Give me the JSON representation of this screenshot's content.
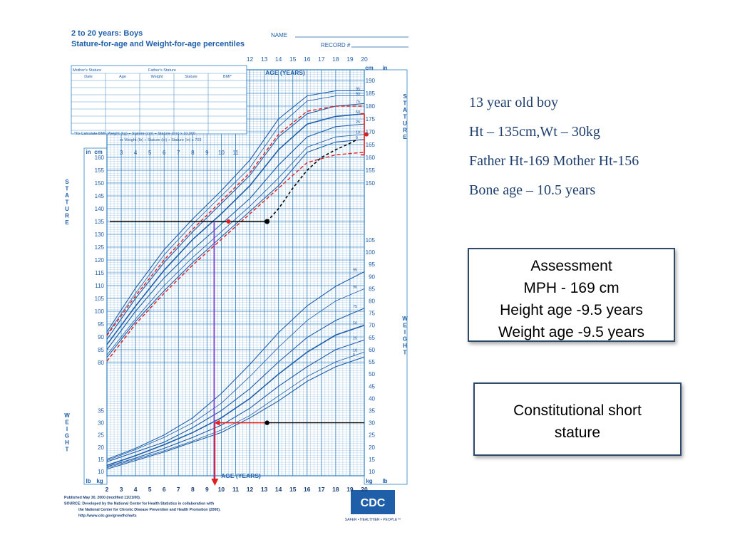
{
  "chart_data": {
    "type": "line",
    "title": "2 to 20 years: Boys",
    "subtitle": "Stature-for-age and Weight-for-age percentiles",
    "header_fields": {
      "name": "NAME",
      "record": "RECORD #"
    },
    "record_table": {
      "parent_fields": [
        "Mother's Stature",
        "Father's Stature"
      ],
      "columns": [
        "Date",
        "Age",
        "Weight",
        "Stature",
        "BMI*"
      ]
    },
    "bmi_formula": [
      "*To Calculate BMI: Weight (kg) ÷ Stature (cm) ÷ Stature (cm) x 10,000",
      "or Weight (lb) ÷ Stature (in) ÷ Stature (in) x 703"
    ],
    "x_axis": {
      "label": "AGE (YEARS)",
      "range": [
        2,
        20
      ],
      "ticks": [
        "2",
        "3",
        "4",
        "5",
        "6",
        "7",
        "8",
        "9",
        "10",
        "11",
        "12",
        "13",
        "14",
        "15",
        "16",
        "17",
        "18",
        "19",
        "20"
      ]
    },
    "y_axis_stature_cm": {
      "range": [
        80,
        195
      ],
      "ticks": [
        "80",
        "85",
        "90",
        "95",
        "100",
        "105",
        "110",
        "115",
        "120",
        "125",
        "130",
        "135",
        "140",
        "145",
        "150",
        "155",
        "160",
        "165",
        "170",
        "175",
        "180",
        "185",
        "190"
      ]
    },
    "y_axis_weight_kg": {
      "range": [
        10,
        105
      ],
      "ticks": [
        "10",
        "15",
        "20",
        "25",
        "30",
        "35",
        "40",
        "45",
        "50",
        "55",
        "60",
        "65",
        "70",
        "75",
        "80",
        "85",
        "90",
        "95",
        "100",
        "105"
      ]
    },
    "axis_units": {
      "cm": "cm",
      "in": "in",
      "kg": "kg",
      "lb": "lb"
    },
    "side_labels": {
      "stature": "STATURE",
      "weight": "WEIGHT"
    },
    "stature_series": [
      {
        "name": "95",
        "x": [
          2,
          4,
          6,
          8,
          10,
          12,
          14,
          16,
          18,
          20
        ],
        "values": [
          92,
          109,
          124,
          136,
          147,
          159,
          175,
          184,
          186,
          186
        ]
      },
      {
        "name": "90",
        "x": [
          2,
          4,
          6,
          8,
          10,
          12,
          14,
          16,
          18,
          20
        ],
        "values": [
          91,
          107,
          122,
          134,
          145,
          156,
          172,
          182,
          184,
          184
        ]
      },
      {
        "name": "75",
        "x": [
          2,
          4,
          6,
          8,
          10,
          12,
          14,
          16,
          18,
          20
        ],
        "values": [
          89,
          105,
          119,
          131,
          142,
          153,
          168,
          177,
          180,
          181
        ]
      },
      {
        "name": "50",
        "x": [
          2,
          4,
          6,
          8,
          10,
          12,
          14,
          16,
          18,
          20
        ],
        "values": [
          87,
          102,
          116,
          128,
          138,
          149,
          163,
          173,
          176,
          177
        ]
      },
      {
        "name": "25",
        "x": [
          2,
          4,
          6,
          8,
          10,
          12,
          14,
          16,
          18,
          20
        ],
        "values": [
          85,
          100,
          113,
          124,
          134,
          144,
          157,
          168,
          172,
          173
        ]
      },
      {
        "name": "10",
        "x": [
          2,
          4,
          6,
          8,
          10,
          12,
          14,
          16,
          18,
          20
        ],
        "values": [
          83,
          97,
          110,
          121,
          131,
          141,
          152,
          164,
          168,
          169
        ]
      },
      {
        "name": "5",
        "x": [
          2,
          4,
          6,
          8,
          10,
          12,
          14,
          16,
          18,
          20
        ],
        "values": [
          82,
          96,
          108,
          119,
          129,
          139,
          149,
          162,
          166,
          167
        ]
      }
    ],
    "weight_series": [
      {
        "name": "95",
        "x": [
          2,
          4,
          6,
          8,
          10,
          12,
          14,
          16,
          18,
          20
        ],
        "values": [
          15,
          19.5,
          25,
          32,
          42,
          54,
          67,
          78,
          86,
          92
        ]
      },
      {
        "name": "90",
        "x": [
          2,
          4,
          6,
          8,
          10,
          12,
          14,
          16,
          18,
          20
        ],
        "values": [
          14.5,
          19,
          24,
          30,
          38,
          49,
          61,
          72,
          80,
          85
        ]
      },
      {
        "name": "75",
        "x": [
          2,
          4,
          6,
          8,
          10,
          12,
          14,
          16,
          18,
          20
        ],
        "values": [
          14,
          18,
          22,
          28,
          35,
          44,
          55,
          65,
          72,
          77
        ]
      },
      {
        "name": "50",
        "x": [
          2,
          4,
          6,
          8,
          10,
          12,
          14,
          16,
          18,
          20
        ],
        "values": [
          12.5,
          16.5,
          21,
          26,
          32,
          40,
          50,
          59,
          66,
          70
        ]
      },
      {
        "name": "25",
        "x": [
          2,
          4,
          6,
          8,
          10,
          12,
          14,
          16,
          18,
          20
        ],
        "values": [
          12,
          15.5,
          19.5,
          24,
          29,
          36,
          45,
          53,
          60,
          64
        ]
      },
      {
        "name": "10",
        "x": [
          2,
          4,
          6,
          8,
          10,
          12,
          14,
          16,
          18,
          20
        ],
        "values": [
          11.5,
          15,
          18.5,
          22.5,
          27,
          33,
          41,
          49,
          55,
          59
        ]
      },
      {
        "name": "5",
        "x": [
          2,
          4,
          6,
          8,
          10,
          12,
          14,
          16,
          18,
          20
        ],
        "values": [
          11,
          14.5,
          18,
          22,
          26,
          32,
          39,
          47,
          53,
          57
        ]
      }
    ],
    "annotations": {
      "patient_point": {
        "age": 13.2,
        "stature": 135,
        "weight": 30
      },
      "bone_age_point": {
        "age": 10.5,
        "stature": 135
      },
      "height_age_line": {
        "stature": 135,
        "age": 9.5
      },
      "weight_age_line": {
        "weight": 30,
        "age": 9.5
      },
      "mph_point": {
        "age": 20,
        "stature": 169
      },
      "target_range": {
        "age": 20,
        "stature_range": [
          161,
          177
        ]
      },
      "projected_curve": {
        "x": [
          13.2,
          14,
          15,
          16,
          17,
          18,
          19,
          19.5
        ],
        "values": [
          135,
          140,
          148,
          155,
          160,
          163,
          165.5,
          167
        ]
      },
      "target_band_upper": {
        "x": [
          2,
          4,
          6,
          8,
          10,
          12,
          14,
          16,
          18,
          20
        ],
        "values": [
          90.5,
          106,
          120,
          132,
          143,
          154,
          169,
          178,
          180,
          180
        ]
      },
      "target_band_lower": {
        "x": [
          2,
          4,
          6,
          8,
          10,
          12,
          14,
          16,
          18,
          20
        ],
        "values": [
          80.5,
          95,
          107,
          118,
          128,
          138,
          148,
          158,
          161,
          162
        ]
      }
    },
    "footer": [
      "Published May 30, 2000 (modified 11/21/00).",
      "SOURCE: Developed by the National Center for Health Statistics in collaboration with",
      "the National Center for Chronic Disease Prevention and Health Promotion (2000).",
      "http://www.cdc.gov/growthcharts"
    ],
    "logo": {
      "text": "CDC",
      "tagline": "SAFER • HEALTHIER • PEOPLE™"
    },
    "colors": {
      "grid": "#2e7fc0",
      "curve": "#1f5ea8",
      "annotation_red": "#e02020",
      "black": "#000000",
      "purple": "#7a3fd0"
    }
  },
  "case_info": [
    "13 year old boy",
    "Ht – 135cm,Wt – 30kg",
    "Father Ht-169 Mother Ht-156",
    "Bone age – 10.5 years"
  ],
  "assessment": {
    "title": "Assessment",
    "lines": [
      "MPH - 169 cm",
      "Height age -9.5 years",
      "Weight age -9.5 years"
    ]
  },
  "diagnosis": {
    "lines": [
      "Constitutional short",
      "stature"
    ]
  }
}
